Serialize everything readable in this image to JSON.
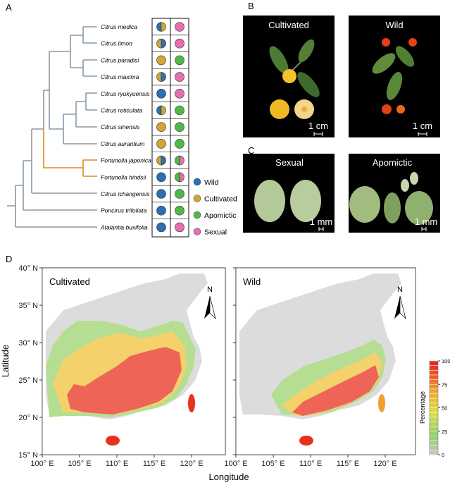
{
  "panel_labels": [
    "A",
    "B",
    "C",
    "D"
  ],
  "panel_a": {
    "species": [
      "Citrus medica",
      "Citrus limon",
      "Citrus paradisi",
      "Citrus maxima",
      "Citrus ryukyuensis",
      "Citrus reticulata",
      "Citrus sinensis",
      "Citrus aurantium",
      "Fortunella japonica",
      "Fortunella hindsii",
      "Citrus ichangensis",
      "Poncirus trifoliata",
      "Atalantia buxifolia"
    ],
    "legend": [
      "Wild",
      "Cultivated",
      "Apomictic",
      "Sexual"
    ]
  },
  "panel_b": {
    "titles": [
      "Cultivated",
      "Wild"
    ],
    "scale_bars": [
      "1 cm",
      "1 cm"
    ]
  },
  "panel_c": {
    "titles": [
      "Sexual",
      "Apomictic"
    ],
    "scale_bars": [
      "1 mm",
      "1 mm"
    ]
  },
  "panel_d": {
    "map_titles": [
      "Cultivated",
      "Wild"
    ],
    "north": [
      "N",
      "N"
    ],
    "y_axis_label": "Latitude",
    "x_axis_label": "Longitude",
    "y_ticks": [
      "40° N",
      "35° N",
      "30° N",
      "25° N",
      "20° N",
      "15° N"
    ],
    "x_ticks_left": [
      "100° E",
      "105° E",
      "110° E",
      "115° E",
      "120° E"
    ],
    "x_ticks_right": [
      "100° E",
      "105° E",
      "110° E",
      "115° E",
      "120° E"
    ],
    "colorbar_label": "Percentage",
    "colorbar_ticks": [
      100,
      75,
      50,
      25,
      0
    ]
  }
}
